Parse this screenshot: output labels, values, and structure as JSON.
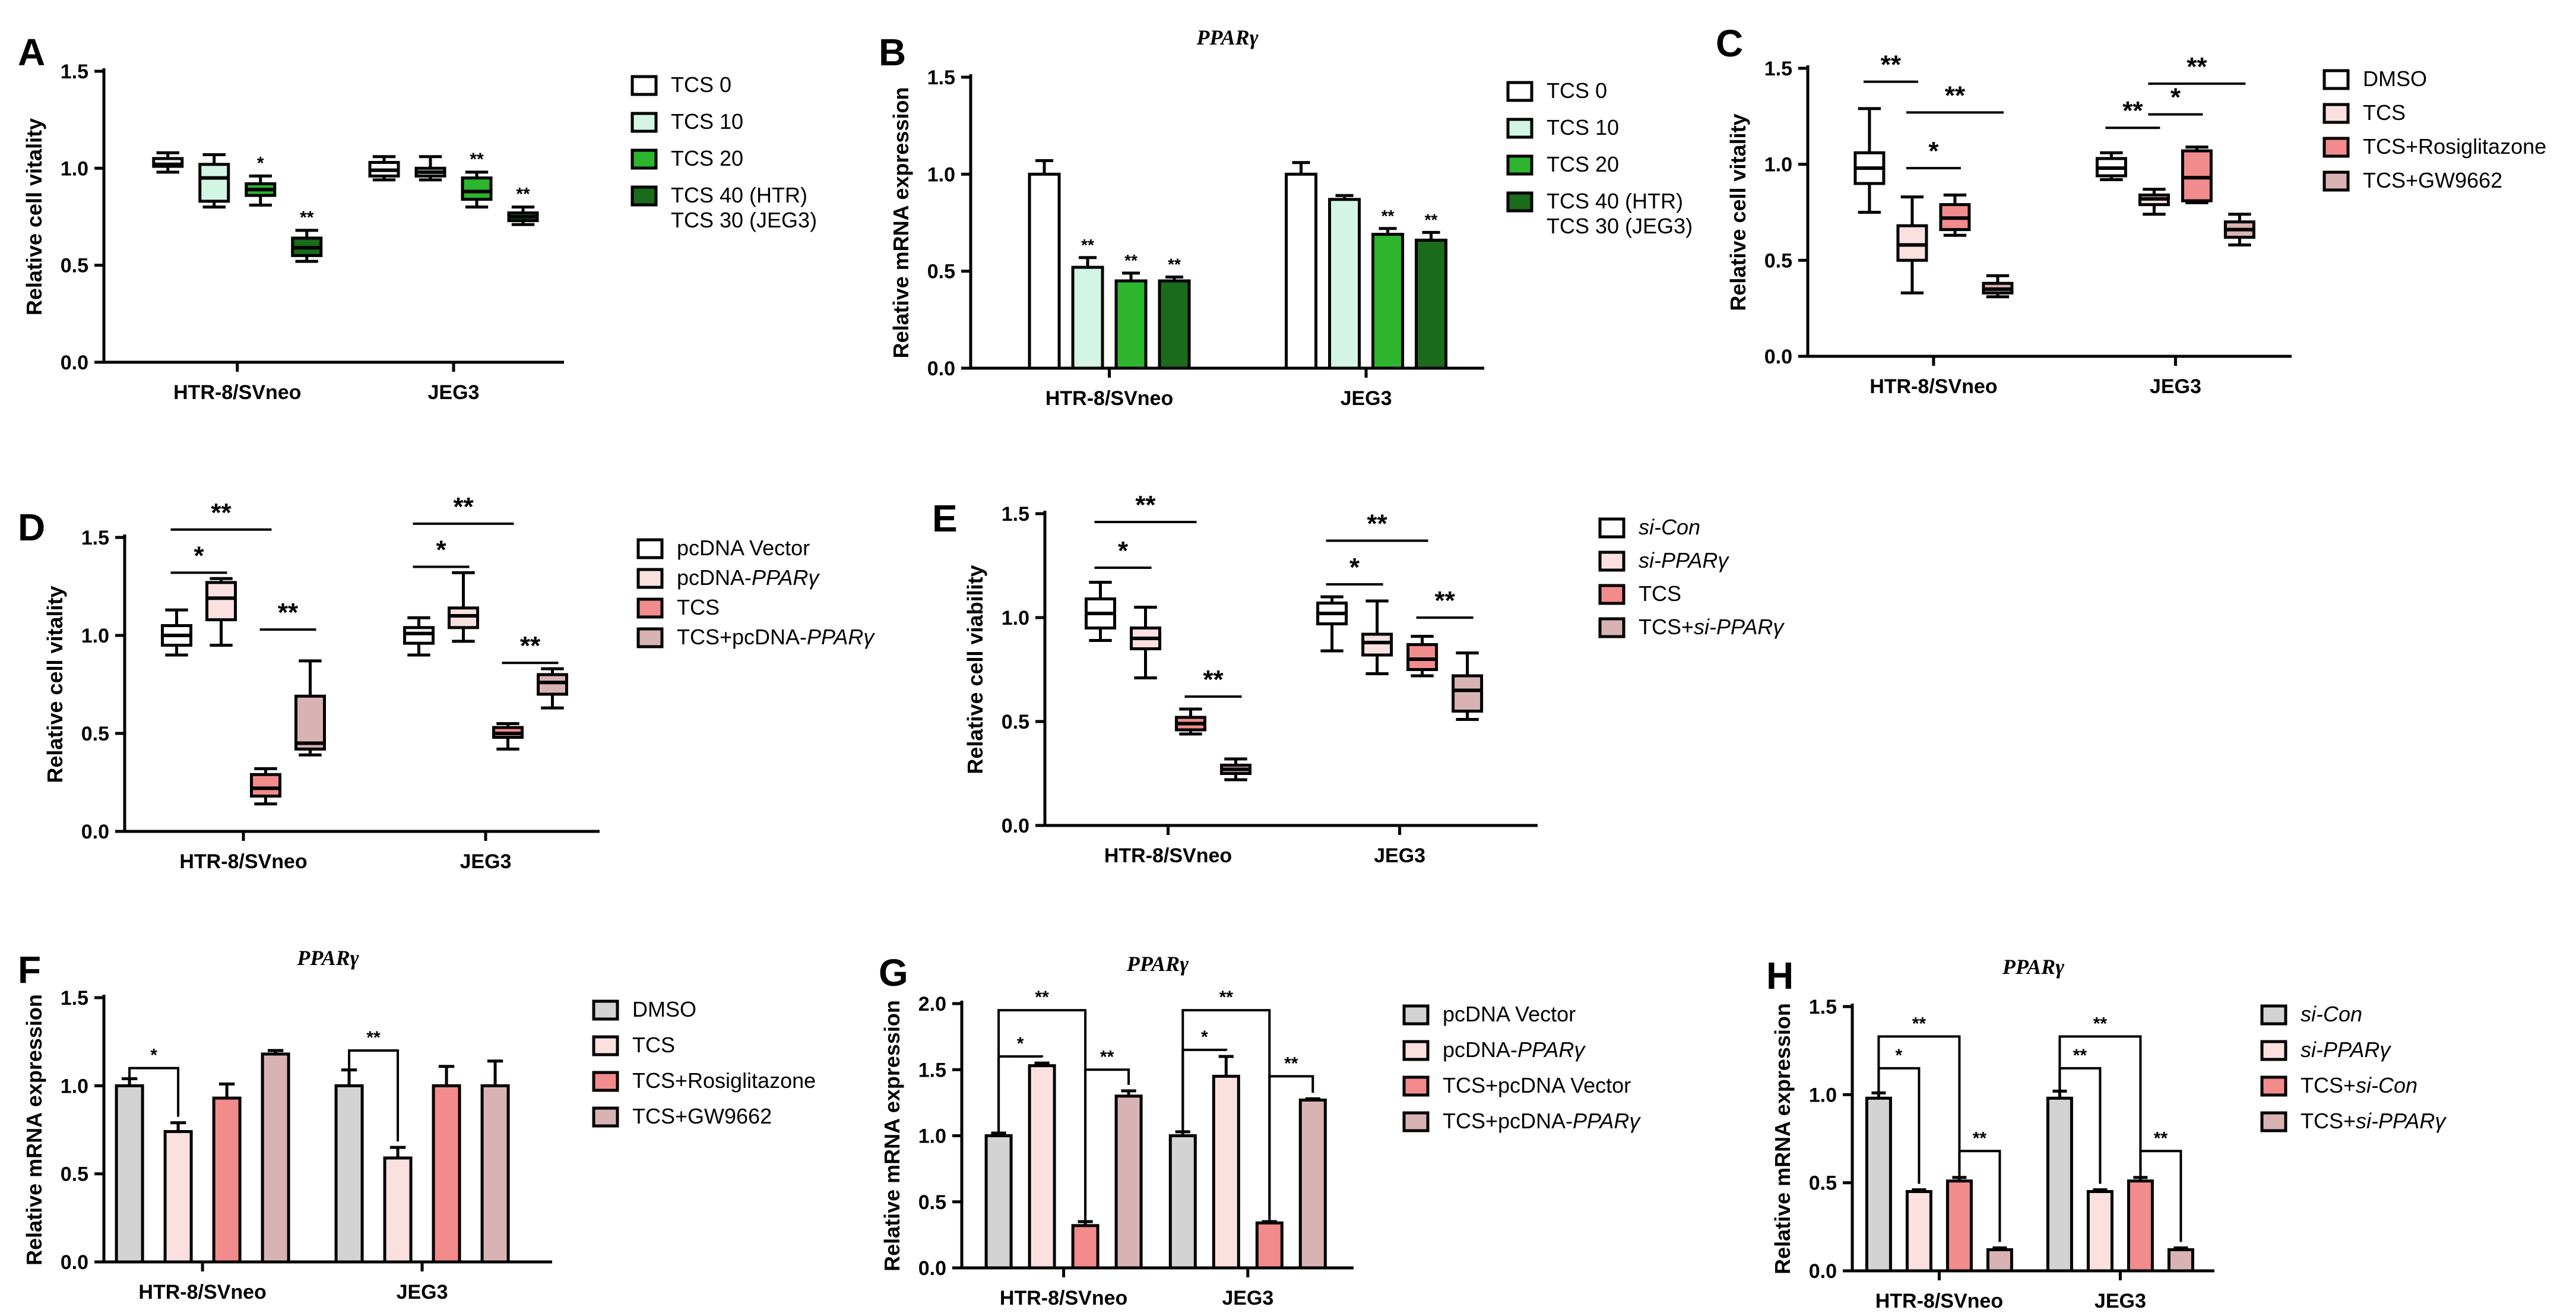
{
  "chart_data": [
    {
      "panel": "A",
      "type": "box",
      "title": "",
      "ylabel": "Relative cell vitality",
      "ylim": [
        0,
        1.5
      ],
      "yticks": [
        "0.0",
        "0.5",
        "1.0",
        "1.5"
      ],
      "categories": [
        "HTR-8/SVneo",
        "JEG3"
      ],
      "series": [
        {
          "name": "TCS 0",
          "color": "#ffffff"
        },
        {
          "name": "TCS 10",
          "color": "#d3f5e6"
        },
        {
          "name": "TCS 20",
          "color": "#2db52d"
        },
        {
          "name": "TCS 40 (HTR)\nTCS 30 (JEG3)",
          "color": "#1a6b1a"
        }
      ],
      "boxes": [
        [
          [
            0.98,
            1.01,
            1.02,
            1.05,
            1.08
          ],
          [
            0.8,
            0.83,
            0.95,
            1.02,
            1.07
          ],
          [
            0.81,
            0.86,
            0.89,
            0.92,
            0.96
          ],
          [
            0.52,
            0.55,
            0.59,
            0.64,
            0.68
          ]
        ],
        [
          [
            0.94,
            0.96,
            0.99,
            1.03,
            1.06
          ],
          [
            0.94,
            0.96,
            0.98,
            1.0,
            1.06
          ],
          [
            0.8,
            0.84,
            0.88,
            0.95,
            0.98
          ],
          [
            0.71,
            0.73,
            0.75,
            0.77,
            0.8
          ]
        ]
      ],
      "sig": [
        [
          "",
          "",
          "*",
          "**"
        ],
        [
          "",
          "",
          "**",
          "**"
        ]
      ]
    },
    {
      "panel": "B",
      "type": "bar",
      "title": "PPARγ",
      "ylabel": "Relative mRNA expression",
      "ylim": [
        0,
        1.5
      ],
      "yticks": [
        "0.0",
        "0.5",
        "1.0",
        "1.5"
      ],
      "categories": [
        "HTR-8/SVneo",
        "JEG3"
      ],
      "series": [
        {
          "name": "TCS 0",
          "color": "#ffffff"
        },
        {
          "name": "TCS 10",
          "color": "#d3f5e6"
        },
        {
          "name": "TCS 20",
          "color": "#2db52d"
        },
        {
          "name": "TCS 40 (HTR)\nTCS 30 (JEG3)",
          "color": "#1a6b1a"
        }
      ],
      "values": [
        [
          1.0,
          0.52,
          0.45,
          0.45
        ],
        [
          1.0,
          0.87,
          0.69,
          0.66
        ]
      ],
      "errors": [
        [
          0.07,
          0.05,
          0.04,
          0.02
        ],
        [
          0.06,
          0.02,
          0.03,
          0.04
        ]
      ],
      "sig": [
        [
          "",
          "**",
          "**",
          "**"
        ],
        [
          "",
          "",
          "**",
          "**"
        ]
      ]
    },
    {
      "panel": "C",
      "type": "box",
      "title": "",
      "ylabel": "Relative cell vitality",
      "ylim": [
        0,
        1.5
      ],
      "yticks": [
        "0.0",
        "0.5",
        "1.0",
        "1.5"
      ],
      "categories": [
        "HTR-8/SVneo",
        "JEG3"
      ],
      "series": [
        {
          "name": "DMSO",
          "color": "#ffffff"
        },
        {
          "name": "TCS",
          "color": "#fbe0e0"
        },
        {
          "name": "TCS+Rosiglitazone",
          "color": "#f28b8b"
        },
        {
          "name": "TCS+GW9662",
          "color": "#d9b3b3"
        }
      ],
      "boxes": [
        [
          [
            0.75,
            0.9,
            0.98,
            1.06,
            1.29
          ],
          [
            0.33,
            0.5,
            0.58,
            0.68,
            0.83
          ],
          [
            0.63,
            0.66,
            0.72,
            0.79,
            0.84
          ],
          [
            0.31,
            0.33,
            0.35,
            0.38,
            0.42
          ]
        ],
        [
          [
            0.92,
            0.94,
            0.98,
            1.03,
            1.06
          ],
          [
            0.74,
            0.79,
            0.82,
            0.84,
            0.87
          ],
          [
            0.8,
            0.81,
            0.93,
            1.07,
            1.09
          ],
          [
            0.58,
            0.62,
            0.66,
            0.7,
            0.74
          ]
        ]
      ],
      "brackets": [
        {
          "g": 0,
          "a": 0,
          "b": 1,
          "v": 1.43,
          "label": "**"
        },
        {
          "g": 0,
          "a": 1,
          "b": 2,
          "v": 0.98,
          "label": "*"
        },
        {
          "g": 0,
          "a": 1,
          "b": 3,
          "v": 1.27,
          "label": "**"
        },
        {
          "g": 1,
          "a": 0,
          "b": 1,
          "v": 1.19,
          "label": "**"
        },
        {
          "g": 1,
          "a": 1,
          "b": 2,
          "v": 1.26,
          "label": "*"
        },
        {
          "g": 1,
          "a": 1,
          "b": 3,
          "v": 1.42,
          "label": "**"
        }
      ]
    },
    {
      "panel": "D",
      "type": "box",
      "title": "",
      "ylabel": "Relative cell vitality",
      "ylim": [
        0,
        1.5
      ],
      "yticks": [
        "0.0",
        "0.5",
        "1.0",
        "1.5"
      ],
      "categories": [
        "HTR-8/SVneo",
        "JEG3"
      ],
      "series": [
        {
          "name": "pcDNA Vector",
          "color": "#ffffff"
        },
        {
          "name": "pcDNA-PPARγ",
          "color": "#fbe0e0"
        },
        {
          "name": "TCS",
          "color": "#f28b8b"
        },
        {
          "name": "TCS+pcDNA-PPARγ",
          "color": "#d9b3b3"
        }
      ],
      "boxes": [
        [
          [
            0.9,
            0.95,
            1.0,
            1.05,
            1.13
          ],
          [
            0.95,
            1.08,
            1.19,
            1.27,
            1.29
          ],
          [
            0.14,
            0.18,
            0.22,
            0.29,
            0.32
          ],
          [
            0.39,
            0.42,
            0.45,
            0.69,
            0.87
          ]
        ],
        [
          [
            0.9,
            0.96,
            1.01,
            1.04,
            1.09
          ],
          [
            0.97,
            1.04,
            1.1,
            1.14,
            1.32
          ],
          [
            0.42,
            0.48,
            0.5,
            0.53,
            0.55
          ],
          [
            0.63,
            0.7,
            0.76,
            0.8,
            0.83
          ]
        ]
      ],
      "brackets": [
        {
          "g": 0,
          "a": 0,
          "b": 1,
          "v": 1.32,
          "label": "*"
        },
        {
          "g": 0,
          "a": 0,
          "b": 2,
          "v": 1.54,
          "label": "**"
        },
        {
          "g": 0,
          "a": 2,
          "b": 3,
          "v": 1.03,
          "label": "**"
        },
        {
          "g": 1,
          "a": 0,
          "b": 1,
          "v": 1.35,
          "label": "*"
        },
        {
          "g": 1,
          "a": 0,
          "b": 2,
          "v": 1.57,
          "label": "**"
        },
        {
          "g": 1,
          "a": 2,
          "b": 3,
          "v": 0.86,
          "label": "**"
        }
      ]
    },
    {
      "panel": "E",
      "type": "box",
      "title": "",
      "ylabel": "Relative cell viability",
      "ylim": [
        0,
        1.5
      ],
      "yticks": [
        "0.0",
        "0.5",
        "1.0",
        "1.5"
      ],
      "categories": [
        "HTR-8/SVneo",
        "JEG3"
      ],
      "series": [
        {
          "name": "si-Con",
          "color": "#ffffff"
        },
        {
          "name": "si-PPARγ",
          "color": "#fbe0e0"
        },
        {
          "name": "TCS",
          "color": "#f28b8b"
        },
        {
          "name": "TCS+si-PPARγ",
          "color": "#d9b3b3"
        }
      ],
      "boxes": [
        [
          [
            0.89,
            0.95,
            1.02,
            1.09,
            1.17
          ],
          [
            0.71,
            0.85,
            0.9,
            0.95,
            1.05
          ],
          [
            0.44,
            0.46,
            0.49,
            0.52,
            0.56
          ],
          [
            0.22,
            0.25,
            0.27,
            0.29,
            0.32
          ]
        ],
        [
          [
            0.84,
            0.97,
            1.02,
            1.07,
            1.1
          ],
          [
            0.73,
            0.82,
            0.88,
            0.92,
            1.08
          ],
          [
            0.72,
            0.75,
            0.8,
            0.87,
            0.91
          ],
          [
            0.51,
            0.55,
            0.65,
            0.72,
            0.83
          ]
        ]
      ],
      "brackets": [
        {
          "g": 0,
          "a": 0,
          "b": 1,
          "v": 1.24,
          "label": "*"
        },
        {
          "g": 0,
          "a": 0,
          "b": 2,
          "v": 1.46,
          "label": "**"
        },
        {
          "g": 0,
          "a": 2,
          "b": 3,
          "v": 0.62,
          "label": "**"
        },
        {
          "g": 1,
          "a": 0,
          "b": 1,
          "v": 1.16,
          "label": "*"
        },
        {
          "g": 1,
          "a": 0,
          "b": 2,
          "v": 1.37,
          "label": "**"
        },
        {
          "g": 1,
          "a": 2,
          "b": 3,
          "v": 1.0,
          "label": "**"
        }
      ]
    },
    {
      "panel": "F",
      "type": "bar",
      "title": "PPARγ",
      "ylabel": "Relative mRNA expression",
      "ylim": [
        0,
        1.5
      ],
      "yticks": [
        "0.0",
        "0.5",
        "1.0",
        "1.5"
      ],
      "categories": [
        "HTR-8/SVneo",
        "JEG3"
      ],
      "series": [
        {
          "name": "DMSO",
          "color": "#d3d3d3"
        },
        {
          "name": "TCS",
          "color": "#fbe0e0"
        },
        {
          "name": "TCS+Rosiglitazone",
          "color": "#f28b8b"
        },
        {
          "name": "TCS+GW9662",
          "color": "#d9b3b3"
        }
      ],
      "values": [
        [
          1.0,
          0.74,
          0.93,
          1.18
        ],
        [
          1.0,
          0.59,
          1.0,
          1.0
        ]
      ],
      "errors": [
        [
          0.04,
          0.05,
          0.08,
          0.02
        ],
        [
          0.09,
          0.06,
          0.11,
          0.14
        ]
      ],
      "brackets": [
        {
          "g": 0,
          "a": 0,
          "b": 1,
          "v": 1.1,
          "label": "*",
          "shape": "down"
        },
        {
          "g": 1,
          "a": 0,
          "b": 1,
          "v": 1.2,
          "label": "**",
          "shape": "down"
        }
      ]
    },
    {
      "panel": "G",
      "type": "bar",
      "title": "PPARγ",
      "ylabel": "Relative mRNA expression",
      "ylim": [
        0,
        2.0
      ],
      "yticks": [
        "0.0",
        "0.5",
        "1.0",
        "1.5",
        "2.0"
      ],
      "categories": [
        "HTR-8/SVneo",
        "JEG3"
      ],
      "series": [
        {
          "name": "pcDNA Vector",
          "color": "#d3d3d3"
        },
        {
          "name": "pcDNA-PPARγ",
          "color": "#fbe0e0"
        },
        {
          "name": "TCS+pcDNA Vector",
          "color": "#f28b8b"
        },
        {
          "name": "TCS+pcDNA-PPARγ",
          "color": "#d9b3b3"
        }
      ],
      "values": [
        [
          1.0,
          1.53,
          0.32,
          1.3
        ],
        [
          1.0,
          1.45,
          0.34,
          1.27
        ]
      ],
      "errors": [
        [
          0.02,
          0.02,
          0.03,
          0.04
        ],
        [
          0.03,
          0.15,
          0.01,
          0.01
        ]
      ],
      "brackets": [
        {
          "g": 0,
          "a": 0,
          "b": 1,
          "v": 1.6,
          "label": "*",
          "shape": "down"
        },
        {
          "g": 0,
          "a": 0,
          "b": 2,
          "v": 1.95,
          "label": "**",
          "shape": "down"
        },
        {
          "g": 0,
          "a": 2,
          "b": 3,
          "v": 1.5,
          "label": "**",
          "shape": "down"
        },
        {
          "g": 1,
          "a": 0,
          "b": 1,
          "v": 1.65,
          "label": "*",
          "shape": "down"
        },
        {
          "g": 1,
          "a": 0,
          "b": 2,
          "v": 1.95,
          "label": "**",
          "shape": "down"
        },
        {
          "g": 1,
          "a": 2,
          "b": 3,
          "v": 1.45,
          "label": "**",
          "shape": "down"
        }
      ]
    },
    {
      "panel": "H",
      "type": "bar",
      "title": "PPARγ",
      "ylabel": "Relative mRNA expression",
      "ylim": [
        0,
        1.5
      ],
      "yticks": [
        "0.0",
        "0.5",
        "1.0",
        "1.5"
      ],
      "categories": [
        "HTR-8/SVneo",
        "JEG3"
      ],
      "series": [
        {
          "name": "si-Con",
          "color": "#d3d3d3"
        },
        {
          "name": "si-PPARγ",
          "color": "#fbe0e0"
        },
        {
          "name": "TCS+si-Con",
          "color": "#f28b8b"
        },
        {
          "name": "TCS+si-PPARγ",
          "color": "#d9b3b3"
        }
      ],
      "values": [
        [
          0.98,
          0.45,
          0.51,
          0.12
        ],
        [
          0.98,
          0.45,
          0.51,
          0.12
        ]
      ],
      "errors": [
        [
          0.03,
          0.01,
          0.02,
          0.01
        ],
        [
          0.04,
          0.01,
          0.02,
          0.01
        ]
      ],
      "brackets": [
        {
          "g": 0,
          "a": 0,
          "b": 1,
          "v": 1.15,
          "label": "*",
          "shape": "down"
        },
        {
          "g": 0,
          "a": 0,
          "b": 2,
          "v": 1.33,
          "label": "**",
          "shape": "down"
        },
        {
          "g": 0,
          "a": 2,
          "b": 3,
          "v": 0.68,
          "label": "**",
          "shape": "down"
        },
        {
          "g": 1,
          "a": 0,
          "b": 1,
          "v": 1.15,
          "label": "**",
          "shape": "down"
        },
        {
          "g": 1,
          "a": 0,
          "b": 2,
          "v": 1.33,
          "label": "**",
          "shape": "down"
        },
        {
          "g": 1,
          "a": 2,
          "b": 3,
          "v": 0.68,
          "label": "**",
          "shape": "down"
        }
      ]
    }
  ]
}
